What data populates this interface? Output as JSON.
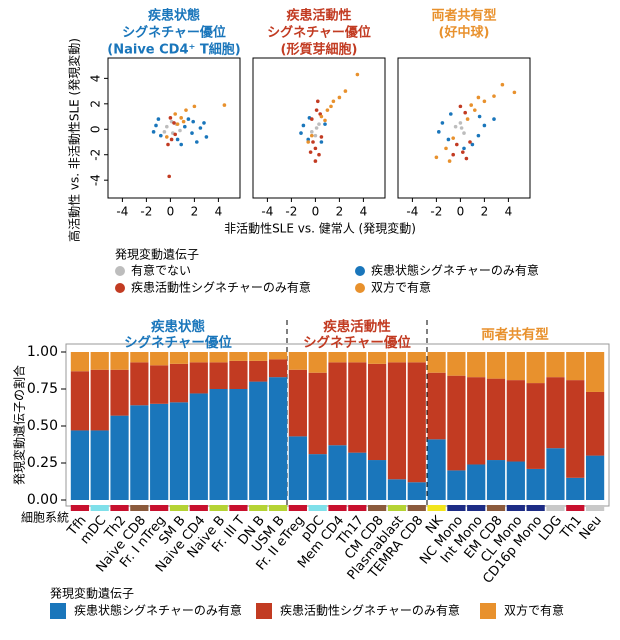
{
  "chart_data": [
    {
      "type": "scatter",
      "x_label": "非活動性SLE vs. 健常人 (発現変動)",
      "y_label": "高活動性 vs. 非活動性SLE (発現変動)",
      "xlim": [
        -5.2,
        5.8
      ],
      "ylim": [
        -5.4,
        5.6
      ],
      "xticks": [
        -4,
        -2,
        0,
        2,
        4
      ],
      "yticks": [
        -4,
        -2,
        0,
        2,
        4
      ],
      "legend_title": "発現変動遺伝子",
      "series": [
        {
          "name": "有意でない",
          "color": "#bdbdbd"
        },
        {
          "name": "疾患状態シグネチャーのみ有意",
          "color": "#1a76bb"
        },
        {
          "name": "疾患活動性シグネチャーのみ有意",
          "color": "#c23b22"
        },
        {
          "name": "双方で有意",
          "color": "#e8912d"
        }
      ],
      "panels": [
        {
          "title": [
            "疾患状態",
            "シグネチャー優位",
            "(Naive CD4⁺ T細胞)"
          ],
          "title_color": "#1a76bb",
          "series": [
            {
              "x": [
                -0.3,
                0.2,
                0.5,
                -0.5,
                0.1,
                0.8
              ],
              "y": [
                0.2,
                -0.3,
                0.4,
                -0.2,
                0.6,
                -0.1
              ]
            },
            {
              "x": [
                -1.2,
                -0.8,
                1.2,
                1.8,
                2.5,
                3.0,
                1.5,
                2.2,
                0.9,
                -1.0,
                2.8,
                0.6,
                1.9,
                -1.4
              ],
              "y": [
                0.3,
                -0.5,
                0.2,
                -0.3,
                0.1,
                -0.6,
                0.8,
                -1.0,
                -1.2,
                0.8,
                0.5,
                -0.8,
                0.6,
                -0.2
              ]
            },
            {
              "x": [
                0.1,
                0.3,
                -0.2,
                0.4,
                0.0,
                -0.1
              ],
              "y": [
                -0.8,
                0.5,
                -1.2,
                -0.4,
                0.9,
                -3.7
              ]
            },
            {
              "x": [
                0.4,
                0.9,
                1.3,
                2.0,
                4.5,
                0.6,
                1.1,
                -0.3
              ],
              "y": [
                1.2,
                0.9,
                1.5,
                1.8,
                1.9,
                0.4,
                0.6,
                -0.6
              ]
            }
          ]
        },
        {
          "title": [
            "疾患活動性",
            "シグネチャー優位",
            "(形質芽細胞)"
          ],
          "title_color": "#c23b22",
          "series": [
            {
              "x": [
                0.1,
                -0.3,
                0.3,
                0.0
              ],
              "y": [
                0.1,
                -0.2,
                0.4,
                -0.5
              ]
            },
            {
              "x": [
                -1.0,
                -0.6,
                0.8,
                -1.2,
                0.5,
                -0.5
              ],
              "y": [
                0.3,
                -0.8,
                0.4,
                -0.3,
                -1.0,
                0.9
              ]
            },
            {
              "x": [
                0.0,
                -0.2,
                0.3,
                0.1,
                -0.3,
                0.5,
                0.0,
                0.4,
                -0.4,
                0.2
              ],
              "y": [
                -1.5,
                -1.0,
                -2.0,
                1.5,
                0.8,
                -0.6,
                -2.5,
                1.2,
                -1.8,
                2.2
              ]
            },
            {
              "x": [
                0.5,
                1.0,
                1.5,
                2.0,
                2.5,
                3.5,
                -0.3,
                -0.6,
                0.8,
                1.3
              ],
              "y": [
                1.0,
                1.5,
                2.2,
                2.5,
                3.0,
                4.3,
                -0.5,
                -1.0,
                0.7,
                1.8
              ]
            }
          ]
        },
        {
          "title": [
            "両者共有型",
            "(好中球)"
          ],
          "title_color": "#e8912d",
          "series": [
            {
              "x": [
                0.1,
                -0.4,
                0.3,
                0.0
              ],
              "y": [
                0.1,
                0.2,
                -0.3,
                0.5
              ]
            },
            {
              "x": [
                -1.5,
                -1.0,
                1.5,
                2.0,
                -1.8,
                1.0,
                2.8,
                -0.8,
                1.6,
                0.3
              ],
              "y": [
                0.5,
                -0.8,
                -0.5,
                0.3,
                -0.2,
                -1.2,
                0.8,
                1.2,
                1.0,
                -1.5
              ]
            },
            {
              "x": [
                0.2,
                -0.3,
                0.5,
                0.0,
                0.4,
                -0.6,
                0.8
              ],
              "y": [
                -1.8,
                -1.2,
                -2.3,
                1.8,
                1.3,
                -2.0,
                -1.0
              ]
            },
            {
              "x": [
                -2.0,
                -1.2,
                -0.6,
                0.6,
                1.2,
                2.0,
                2.8,
                3.5,
                4.5,
                1.5,
                -0.9,
                0.9
              ],
              "y": [
                -2.2,
                -1.5,
                -0.7,
                0.8,
                1.5,
                2.2,
                2.6,
                3.5,
                2.9,
                2.5,
                -2.5,
                1.9
              ]
            }
          ]
        }
      ]
    },
    {
      "type": "bar",
      "stacked": true,
      "categories": [
        "Tfh",
        "mDC",
        "Th2",
        "Naive CD8",
        "Fr. I nTreg",
        "SM B",
        "Naive CD4",
        "Naive B",
        "Fr. III T",
        "DN B",
        "USM B",
        "Fr. II eTreg",
        "pDC",
        "Mem CD4",
        "Th17",
        "CM CD8",
        "Plasmablast",
        "TEMRA CD8",
        "NK",
        "NC Mono",
        "Int Mono",
        "EM CD8",
        "CL Mono",
        "CD16p Mono",
        "LDG",
        "Th1",
        "Neu"
      ],
      "lineage_colors": [
        "#c8102e",
        "#7fe0ea",
        "#c8102e",
        "#8b5a3c",
        "#c8102e",
        "#b5d334",
        "#c8102e",
        "#b5d334",
        "#c8102e",
        "#b5d334",
        "#b5d334",
        "#c8102e",
        "#7fe0ea",
        "#c8102e",
        "#c8102e",
        "#8b5a3c",
        "#b5d334",
        "#8b5a3c",
        "#f2e51c",
        "#1d2c85",
        "#1d2c85",
        "#8b5a3c",
        "#1d2c85",
        "#1d2c85",
        "#c8c8c8",
        "#c8102e",
        "#c8c8c8"
      ],
      "series": [
        {
          "name": "疾患状態シグネチャーのみ有意",
          "color": "#1a76bb",
          "values": [
            0.47,
            0.47,
            0.57,
            0.64,
            0.65,
            0.66,
            0.72,
            0.75,
            0.75,
            0.8,
            0.83,
            0.43,
            0.31,
            0.37,
            0.32,
            0.27,
            0.14,
            0.12,
            0.41,
            0.2,
            0.24,
            0.27,
            0.26,
            0.21,
            0.35,
            0.15,
            0.3
          ]
        },
        {
          "name": "疾患活動性シグネチャーのみ有意",
          "color": "#c23b22",
          "values": [
            0.4,
            0.41,
            0.31,
            0.29,
            0.26,
            0.26,
            0.21,
            0.18,
            0.19,
            0.14,
            0.12,
            0.45,
            0.55,
            0.56,
            0.61,
            0.65,
            0.79,
            0.81,
            0.45,
            0.64,
            0.59,
            0.55,
            0.55,
            0.58,
            0.48,
            0.66,
            0.43
          ]
        },
        {
          "name": "双方で有意",
          "color": "#e8912d",
          "values": [
            0.13,
            0.12,
            0.12,
            0.07,
            0.09,
            0.08,
            0.07,
            0.07,
            0.06,
            0.06,
            0.05,
            0.12,
            0.14,
            0.07,
            0.07,
            0.08,
            0.07,
            0.07,
            0.14,
            0.16,
            0.17,
            0.18,
            0.19,
            0.21,
            0.17,
            0.19,
            0.27
          ]
        }
      ],
      "ylim": [
        0,
        1
      ],
      "yticks": [
        {
          "value": 0,
          "label": "0.00"
        },
        {
          "value": 0.25,
          "label": "0.25"
        },
        {
          "value": 0.5,
          "label": "0.50"
        },
        {
          "value": 0.75,
          "label": "0.75"
        },
        {
          "value": 1,
          "label": "1.00"
        }
      ],
      "y_label": "発現変動遺伝子の割合",
      "x_label": "細胞系統",
      "legend_title": "発現変動遺伝子",
      "groups": [
        {
          "label": [
            "疾患状態",
            "シグネチャー優位"
          ],
          "color": "#1a76bb"
        },
        {
          "label": [
            "疾患活動性",
            "シグネチャー優位"
          ],
          "color": "#c23b22"
        },
        {
          "label": [
            "両者共有型"
          ],
          "color": "#e8912d"
        }
      ]
    }
  ]
}
